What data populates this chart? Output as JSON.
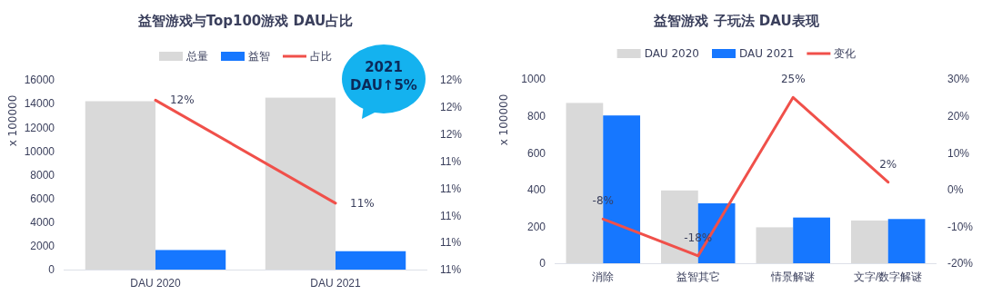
{
  "chart_data": [
    {
      "type": "bar",
      "title": "益智游戏与Top100游戏 DAU占比",
      "ylabel": "x 100000",
      "categories": [
        "DAU 2020",
        "DAU 2021"
      ],
      "series": [
        {
          "name": "总量",
          "color": "#d9d9d9",
          "values": [
            14200,
            14500
          ]
        },
        {
          "name": "益智",
          "color": "#1677ff",
          "values": [
            1650,
            1550
          ]
        },
        {
          "name": "占比",
          "type": "line",
          "axis": "y2",
          "color": "#f0504a",
          "values": [
            11.85,
            11.09
          ],
          "value_labels": [
            "12%",
            "11%"
          ]
        }
      ],
      "ylim": [
        0,
        16000
      ],
      "yticks": [
        0,
        2000,
        4000,
        6000,
        8000,
        10000,
        12000,
        14000,
        16000
      ],
      "y2lim": [
        10.6,
        12
      ],
      "y2ticks": [
        {
          "value": 10.6,
          "label": "11%"
        },
        {
          "value": 10.8,
          "label": "11%"
        },
        {
          "value": 11,
          "label": "11%"
        },
        {
          "value": 11.2,
          "label": "11%"
        },
        {
          "value": 11.4,
          "label": "11%"
        },
        {
          "value": 11.6,
          "label": "12%"
        },
        {
          "value": 11.8,
          "label": "12%"
        },
        {
          "value": 12,
          "label": "12%"
        }
      ],
      "annotations": [
        "2021 DAU↑5%"
      ],
      "legend": "top",
      "grid": false
    },
    {
      "type": "bar",
      "title": "益智游戏 子玩法 DAU表现",
      "ylabel": "x 100000",
      "categories": [
        "消除",
        "益智其它",
        "情景解谜",
        "文字/数字解谜"
      ],
      "series": [
        {
          "name": "DAU 2020",
          "color": "#d9d9d9",
          "values": [
            870,
            395,
            195,
            232
          ]
        },
        {
          "name": "DAU 2021",
          "color": "#1677ff",
          "values": [
            802,
            325,
            248,
            240
          ]
        },
        {
          "name": "变化",
          "type": "line",
          "axis": "y2",
          "color": "#f0504a",
          "values": [
            -8,
            -18,
            25,
            2
          ],
          "value_labels": [
            "-8%",
            "-18%",
            "25%",
            "2%"
          ]
        }
      ],
      "ylim": [
        0,
        1000
      ],
      "yticks": [
        0,
        200,
        400,
        600,
        800,
        1000
      ],
      "y2lim": [
        -20,
        30
      ],
      "y2ticks": [
        {
          "value": -20,
          "label": "-20%"
        },
        {
          "value": -10,
          "label": "-10%"
        },
        {
          "value": 0,
          "label": "0%"
        },
        {
          "value": 10,
          "label": "10%"
        },
        {
          "value": 20,
          "label": "20%"
        },
        {
          "value": 30,
          "label": "30%"
        }
      ],
      "legend": "top",
      "grid": false
    }
  ]
}
